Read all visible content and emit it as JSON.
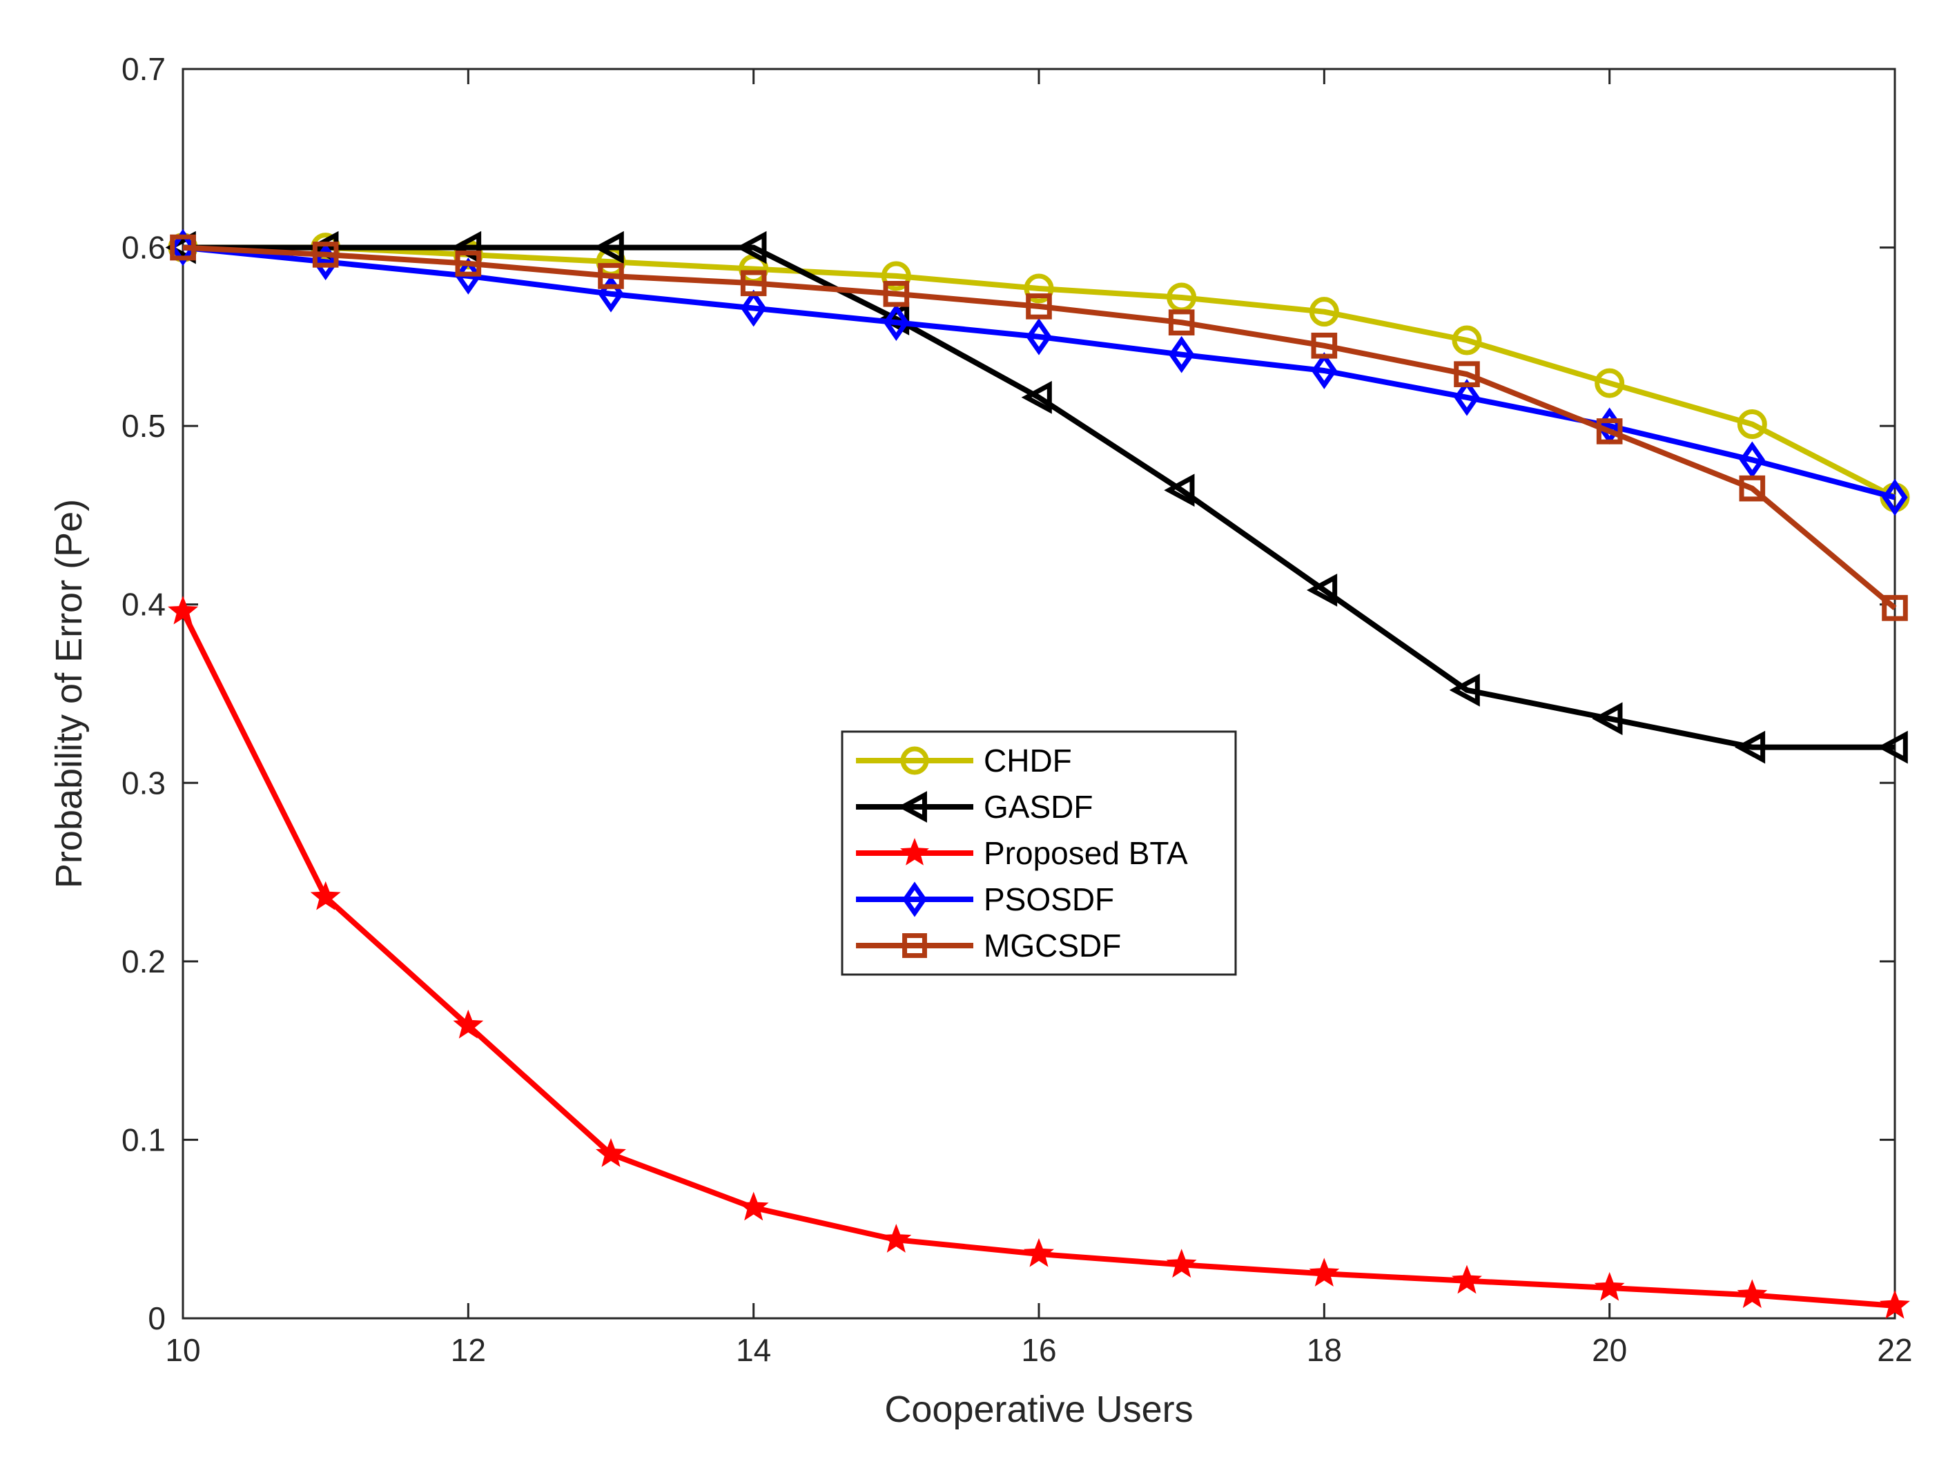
{
  "chart_data": {
    "type": "line",
    "title": "",
    "xlabel": "Cooperative Users",
    "ylabel": "Probability of Error (Pe)",
    "xlim": [
      10,
      22
    ],
    "ylim": [
      0,
      0.7
    ],
    "xticks": [
      10,
      12,
      14,
      16,
      18,
      20,
      22
    ],
    "yticks": [
      0,
      0.1,
      0.2,
      0.3,
      0.4,
      0.5,
      0.6,
      0.7
    ],
    "xtick_labels": [
      "10",
      "12",
      "14",
      "16",
      "18",
      "20",
      "22"
    ],
    "ytick_labels": [
      "0",
      "0.1",
      "0.2",
      "0.3",
      "0.4",
      "0.5",
      "0.6",
      "0.7"
    ],
    "grid": false,
    "legend_position": "center",
    "x": [
      10,
      11,
      12,
      13,
      14,
      15,
      16,
      17,
      18,
      19,
      20,
      21,
      22
    ],
    "series": [
      {
        "name": "CHDF",
        "color": "#c8c000",
        "marker": "circle",
        "values": [
          0.6,
          0.6,
          0.596,
          0.592,
          0.588,
          0.584,
          0.577,
          0.572,
          0.564,
          0.548,
          0.524,
          0.501,
          0.46
        ]
      },
      {
        "name": "GASDF",
        "color": "#000000",
        "marker": "triangle-left",
        "values": [
          0.6,
          0.6,
          0.6,
          0.6,
          0.6,
          0.56,
          0.516,
          0.464,
          0.408,
          0.352,
          0.336,
          0.32,
          0.32
        ]
      },
      {
        "name": "Proposed BTA",
        "color": "#ff0000",
        "marker": "star",
        "values": [
          0.396,
          0.236,
          0.164,
          0.092,
          0.062,
          0.044,
          0.036,
          0.03,
          0.025,
          0.021,
          0.017,
          0.013,
          0.007
        ]
      },
      {
        "name": "PSOSDF",
        "color": "#0000ff",
        "marker": "diamond",
        "values": [
          0.6,
          0.592,
          0.584,
          0.574,
          0.566,
          0.558,
          0.55,
          0.54,
          0.531,
          0.516,
          0.5,
          0.481,
          0.46
        ]
      },
      {
        "name": "MGCSDF",
        "color": "#b03a12",
        "marker": "square",
        "values": [
          0.6,
          0.596,
          0.591,
          0.584,
          0.58,
          0.574,
          0.567,
          0.558,
          0.545,
          0.529,
          0.497,
          0.465,
          0.398
        ]
      }
    ]
  }
}
